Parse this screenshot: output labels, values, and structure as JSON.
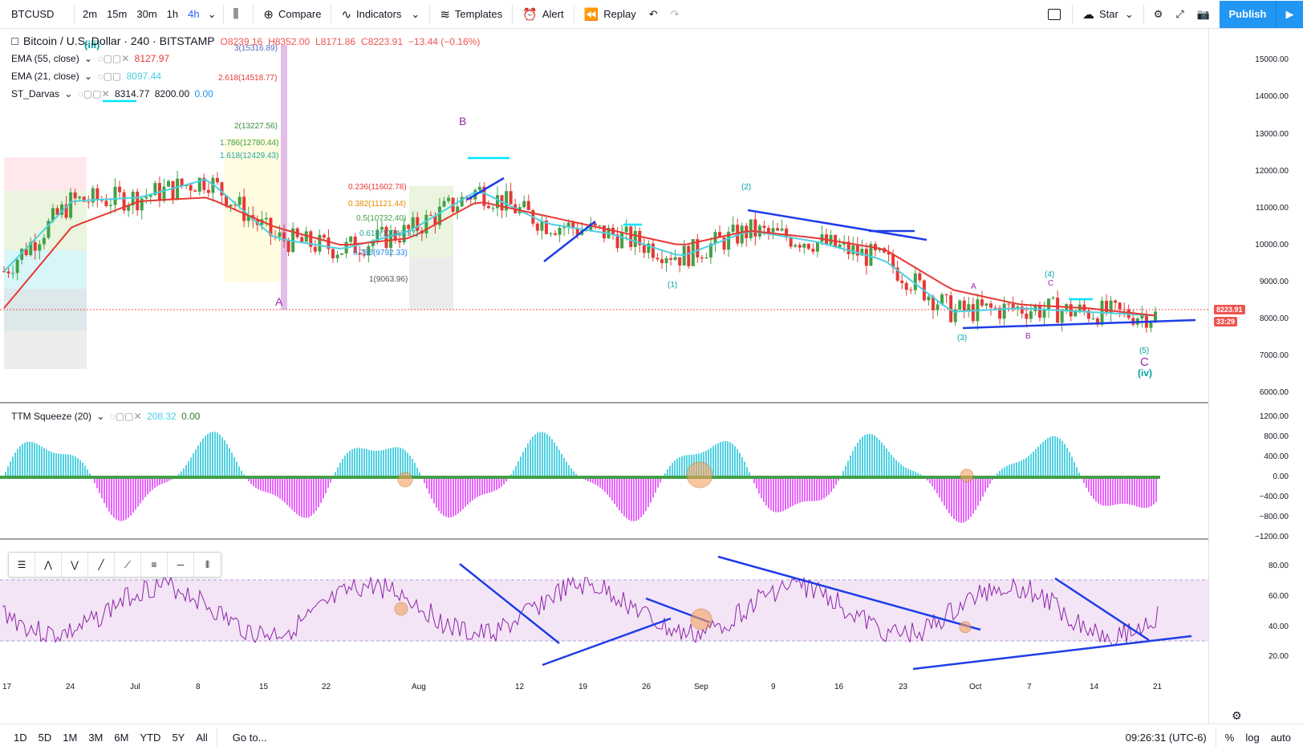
{
  "topbar": {
    "symbol": "BTCUSD",
    "timeframes": [
      "2m",
      "15m",
      "30m",
      "1h",
      "4h"
    ],
    "active_timeframe": "4h",
    "compare": "Compare",
    "indicators": "Indicators",
    "templates": "Templates",
    "alert": "Alert",
    "replay": "Replay",
    "star": "Star",
    "publish": "Publish"
  },
  "legend": {
    "main": "Bitcoin / U.S. Dollar · 240 · BITSTAMP",
    "o": "O8239.16",
    "h": "H8352.00",
    "l": "L8171.86",
    "c": "C8223.91",
    "chg": "−13.44 (−0.16%)",
    "ema55": "EMA (55, close)",
    "ema55_val": "8127.97",
    "ema21": "EMA (21, close)",
    "ema21_val": "8097.44",
    "darvas": "ST_Darvas",
    "darvas_v1": "8314.77",
    "darvas_v2": "8200.00",
    "darvas_v3": "0.00",
    "ttm": "TTM Squeeze (20)",
    "ttm_v1": "208.32",
    "ttm_v2": "0.00"
  },
  "price_axis": {
    "labels": [
      "15000.00",
      "14000.00",
      "13000.00",
      "12000.00",
      "11000.00",
      "10000.00",
      "9000.00",
      "8000.00",
      "7000.00",
      "6000.00"
    ],
    "last_price": "8223.91",
    "countdown": "33:29"
  },
  "ttm_axis": {
    "labels": [
      "1200.00",
      "800.00",
      "400.00",
      "0.00",
      "−400.00",
      "−800.00",
      "−1200.00"
    ]
  },
  "rsi_axis": {
    "labels": [
      "80.00",
      "60.00",
      "40.00",
      "20.00"
    ]
  },
  "time_axis": {
    "labels": [
      "17",
      "24",
      "Jul",
      "8",
      "15",
      "22",
      "Aug",
      "12",
      "19",
      "26",
      "Sep",
      "9",
      "16",
      "23",
      "Oct",
      "7",
      "14",
      "21"
    ]
  },
  "annotations": {
    "wave_labels": [
      "(iii)",
      "A",
      "B",
      "C",
      "(iv)",
      "(5)",
      "(4)",
      "(3)",
      "(2)",
      "(1)",
      "A",
      "B",
      "C"
    ],
    "fib_labels": [
      "3(15316.89)",
      "2.618(14518.77)",
      "2(13227.56)",
      "1.786(12780.44)",
      "1.618(12429.43)",
      "0.236(11602.78)",
      "0.382(11121.44)",
      "0.5(10732.40)",
      "0.618(10343.37)",
      "0.786(9792.33)",
      "1(9063.96)"
    ]
  },
  "bottombar": {
    "ranges": [
      "1D",
      "5D",
      "1M",
      "3M",
      "6M",
      "YTD",
      "5Y",
      "All"
    ],
    "goto": "Go to...",
    "time": "09:26:31 (UTC-6)",
    "pct": "%",
    "log": "log",
    "auto": "auto"
  },
  "chart_data": {
    "type": "line",
    "title": "Bitcoin / U.S. Dollar · 240 · BITSTAMP",
    "x": [
      "17",
      "24",
      "Jul",
      "8",
      "15",
      "22",
      "Aug",
      "12",
      "19",
      "26",
      "Sep",
      "9",
      "16",
      "23",
      "Oct",
      "7",
      "14",
      "21"
    ],
    "series": [
      {
        "name": "EMA (21, close)",
        "values": [
          9300,
          11200,
          11300,
          11800,
          10200,
          9900,
          10400,
          11500,
          10600,
          10300,
          9700,
          10400,
          10100,
          9600,
          8200,
          8300,
          8200,
          8100
        ]
      },
      {
        "name": "EMA (55, close)",
        "values": [
          8300,
          10500,
          11200,
          11300,
          10500,
          10000,
          10200,
          11200,
          10800,
          10400,
          10000,
          10400,
          10200,
          9900,
          8800,
          8400,
          8300,
          8100
        ]
      }
    ],
    "ylim": [
      6000,
      15500
    ]
  }
}
